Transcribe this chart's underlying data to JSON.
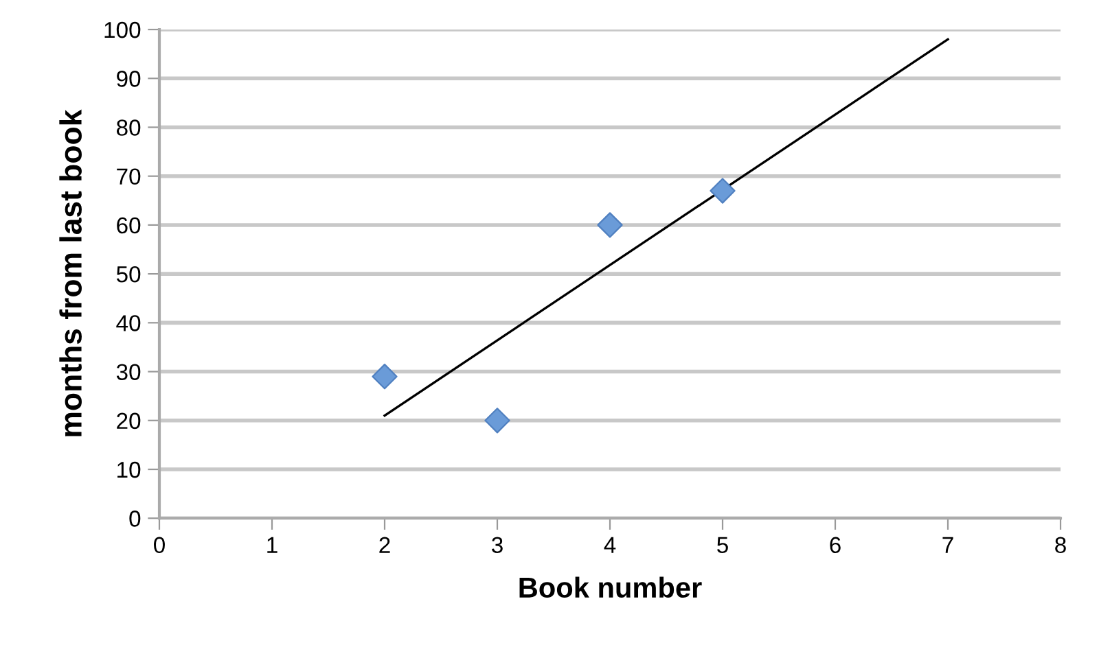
{
  "chart_data": {
    "type": "scatter",
    "xlabel": "Book number",
    "ylabel": "months from last book",
    "xlim": [
      0,
      8
    ],
    "xticks": [
      0,
      1,
      2,
      3,
      4,
      5,
      6,
      7,
      8
    ],
    "ylim": [
      0,
      100
    ],
    "yticks": [
      0,
      10,
      20,
      30,
      40,
      50,
      60,
      70,
      80,
      90,
      100
    ],
    "grid": "y",
    "marker": "diamond",
    "series": [
      {
        "color": "#6a9bd8",
        "x": [
          2,
          3,
          4,
          5
        ],
        "values": [
          29,
          20,
          60,
          67
        ]
      },
      {
        "type": "line",
        "color": "#000000",
        "x": [
          2,
          7
        ],
        "values": [
          21,
          98
        ],
        "line_style": "solid",
        "marker": "none"
      }
    ]
  }
}
